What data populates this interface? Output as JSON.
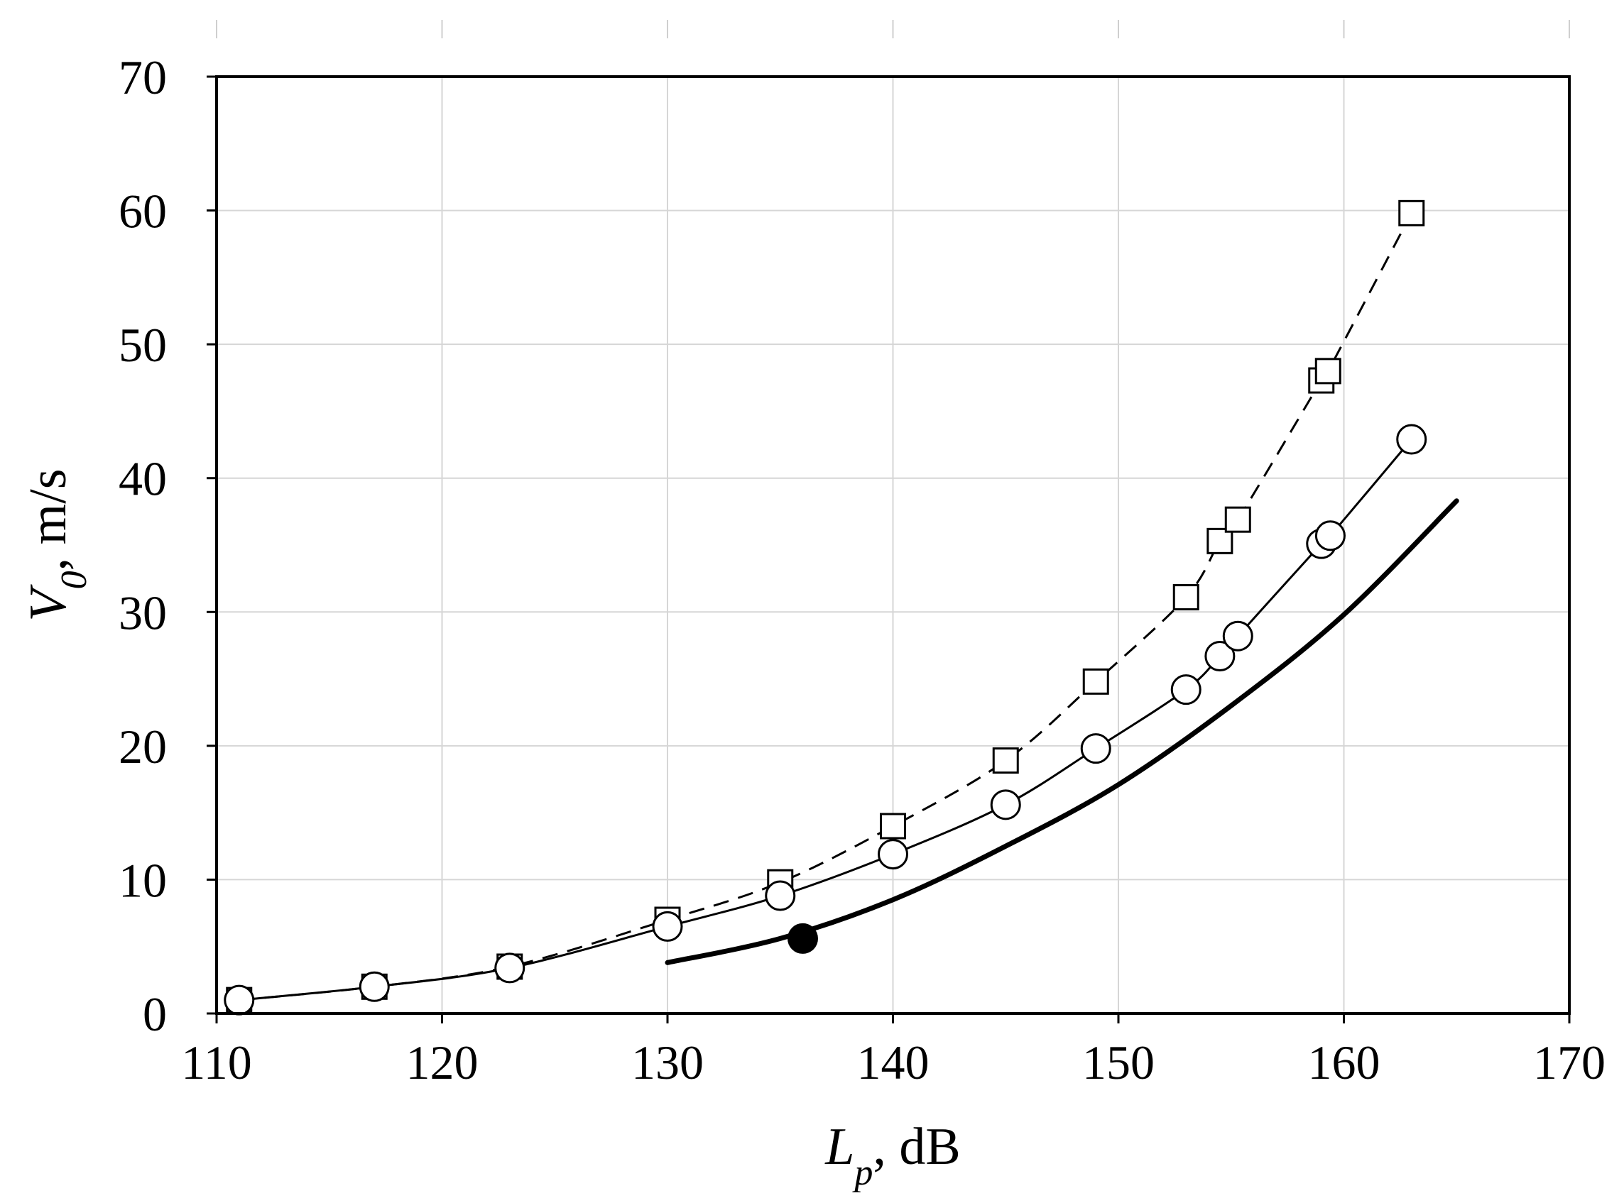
{
  "chart_data": {
    "type": "line",
    "title": "",
    "xlabel": {
      "main": "L",
      "sub": "p",
      "unit": ", dB"
    },
    "ylabel": {
      "main": "V",
      "sub": "0",
      "unit": ", m/s"
    },
    "xlim": [
      110,
      170
    ],
    "ylim": [
      0,
      70
    ],
    "xticks": [
      110,
      120,
      130,
      140,
      150,
      160,
      170
    ],
    "yticks": [
      0,
      10,
      20,
      30,
      40,
      50,
      60,
      70
    ],
    "grid": true,
    "legend": "none",
    "series": [
      {
        "marker": "square",
        "line": "dashed",
        "x": [
          111,
          117,
          123,
          130,
          135,
          140,
          145,
          149,
          153,
          154.5,
          155.3,
          159,
          159.3,
          163
        ],
        "y": [
          1.0,
          2.0,
          3.5,
          7.0,
          9.8,
          14.0,
          18.9,
          24.8,
          31.1,
          35.3,
          36.9,
          47.3,
          48.0,
          59.8
        ]
      },
      {
        "marker": "circle",
        "line": "solid",
        "x": [
          111,
          117,
          123,
          130,
          135,
          140,
          145,
          149,
          153,
          154.5,
          155.3,
          159,
          159.4,
          163
        ],
        "y": [
          1.0,
          2.0,
          3.4,
          6.5,
          8.8,
          11.9,
          15.6,
          19.8,
          24.2,
          26.7,
          28.2,
          35.1,
          35.7,
          42.9
        ]
      },
      {
        "marker": "none",
        "line": "thick-solid",
        "x": [
          130,
          135,
          140,
          145,
          150,
          155,
          160,
          165
        ],
        "y": [
          3.8,
          5.6,
          8.5,
          12.5,
          17.1,
          23.0,
          29.8,
          38.3
        ]
      },
      {
        "marker": "filled-circle",
        "line": "none",
        "x": [
          136
        ],
        "y": [
          5.6
        ]
      }
    ]
  }
}
